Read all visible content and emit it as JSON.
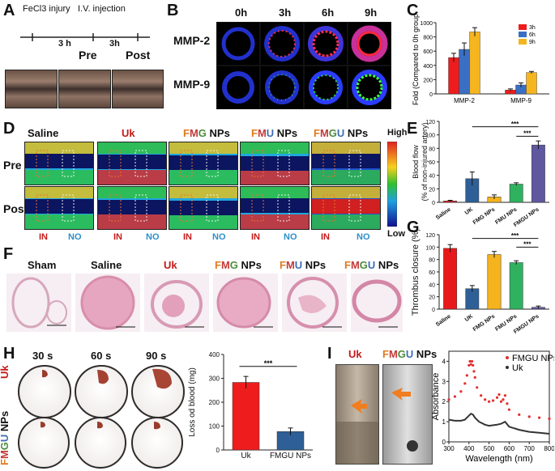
{
  "panels": {
    "A": {
      "label": "A",
      "events": [
        "FeCl3 injury",
        "I.V. injection"
      ],
      "interval1": "3 h",
      "interval2": "3h",
      "pre": "Pre",
      "post": "Post"
    },
    "B": {
      "label": "B",
      "times": [
        "0h",
        "3h",
        "6h",
        "9h"
      ],
      "rows": [
        "MMP-2",
        "MMP-9"
      ]
    },
    "D": {
      "label": "D",
      "groups": [
        "Saline",
        "Uk",
        "FMG NPs",
        "FMU NPs",
        "FMGU NPs"
      ],
      "rows": [
        "Pre",
        "Post"
      ],
      "in_label": "IN",
      "no_label": "NO",
      "scale_high": "High",
      "scale_low": "Low"
    },
    "F": {
      "label": "F",
      "groups": [
        "Sham",
        "Saline",
        "Uk",
        "FMG NPs",
        "FMU NPs",
        "FMGU NPs"
      ]
    },
    "H": {
      "label": "H",
      "times": [
        "30 s",
        "60 s",
        "90 s"
      ],
      "rows": [
        "Uk",
        "FMGU NPs"
      ]
    },
    "I": {
      "label": "I",
      "tubes": [
        "Uk",
        "FMGU NPs"
      ]
    },
    "C": {
      "label": "C"
    },
    "E": {
      "label": "E"
    },
    "G": {
      "label": "G"
    }
  },
  "chart_data": [
    {
      "id": "C",
      "type": "bar",
      "categories": [
        "MMP-2",
        "MMP-9"
      ],
      "series": [
        {
          "name": "3h",
          "color": "#ee1c1c",
          "values": [
            510,
            55
          ],
          "errors": [
            60,
            15
          ]
        },
        {
          "name": "6h",
          "color": "#3a6fc4",
          "values": [
            625,
            125
          ],
          "errors": [
            90,
            30
          ]
        },
        {
          "name": "9h",
          "color": "#f5b51e",
          "values": [
            870,
            300
          ],
          "errors": [
            60,
            15
          ]
        }
      ],
      "title": "",
      "ylabel": "Fold (Compared to 0h group)",
      "ylim": [
        0,
        1000
      ],
      "yticks": [
        "0",
        "200",
        "400",
        "600",
        "800",
        "1000"
      ],
      "legend": "top-right"
    },
    {
      "id": "E",
      "type": "bar",
      "categories": [
        "Saline",
        "UK",
        "FMG NPs",
        "FMU NPs",
        "FMGU NPs"
      ],
      "values": [
        2,
        35,
        8,
        27,
        85
      ],
      "errors": [
        1,
        10,
        3,
        2,
        6
      ],
      "colors": [
        "#e8191b",
        "#2e5f96",
        "#f5b31d",
        "#2fb160",
        "#5f57a0"
      ],
      "ylabel": "Blood flow (% of non-injured artery)",
      "ylim": [
        0,
        120
      ],
      "yticks": [
        "0",
        "20",
        "40",
        "60",
        "80",
        "100",
        "120"
      ],
      "annotations": [
        "***",
        "***"
      ]
    },
    {
      "id": "G",
      "type": "bar",
      "categories": [
        "Saline",
        "UK",
        "FMG NPs",
        "FMU NPs",
        "FMGU NPs"
      ],
      "values": [
        98,
        33,
        88,
        75,
        3
      ],
      "errors": [
        6,
        5,
        5,
        3,
        2
      ],
      "colors": [
        "#e8191b",
        "#2e5f96",
        "#f5b31d",
        "#2fb160",
        "#5f57a0"
      ],
      "ylabel": "Thrombus closure (%)",
      "ylim": [
        0,
        120
      ],
      "yticks": [
        "0",
        "20",
        "40",
        "60",
        "80",
        "100",
        "120"
      ],
      "annotations": [
        "***",
        "***"
      ]
    },
    {
      "id": "H",
      "type": "bar",
      "categories": [
        "Uk",
        "FMGU NPs"
      ],
      "values": [
        283,
        77
      ],
      "errors": [
        25,
        15
      ],
      "colors": [
        "#ee1c1c",
        "#2e5f96"
      ],
      "ylabel": "Loss od blood (mg)",
      "ylim": [
        0,
        400
      ],
      "yticks": [
        "0",
        "100",
        "200",
        "300",
        "400"
      ],
      "annotations": [
        "***"
      ]
    },
    {
      "id": "I",
      "type": "line",
      "series": [
        {
          "name": "FMGU NPs",
          "color": "#e03030",
          "x": [
            300,
            330,
            360,
            380,
            390,
            400,
            405,
            410,
            415,
            420,
            425,
            430,
            440,
            460,
            480,
            500,
            520,
            540,
            550,
            560,
            570,
            580,
            590,
            600,
            650,
            700,
            750,
            800
          ],
          "y": [
            2.1,
            2.25,
            2.5,
            2.9,
            3.3,
            3.8,
            4.0,
            3.85,
            4.0,
            3.8,
            3.5,
            3.2,
            2.7,
            2.3,
            2.1,
            2.0,
            2.05,
            2.2,
            2.35,
            2.0,
            2.1,
            2.3,
            1.9,
            1.6,
            1.35,
            1.25,
            1.2,
            1.15
          ]
        },
        {
          "name": "Uk",
          "color": "#333333",
          "x": [
            300,
            330,
            360,
            380,
            400,
            410,
            420,
            430,
            450,
            480,
            500,
            540,
            560,
            580,
            600,
            650,
            700,
            750,
            800
          ],
          "y": [
            1.1,
            1.05,
            1.05,
            1.1,
            1.3,
            1.4,
            1.35,
            1.2,
            1.0,
            0.85,
            0.8,
            0.85,
            0.9,
            1.0,
            0.75,
            0.6,
            0.5,
            0.45,
            0.4
          ]
        }
      ],
      "xlabel": "Wavelength (nm)",
      "ylabel": "Absorbance",
      "xlim": [
        300,
        800
      ],
      "ylim": [
        0,
        4.5
      ],
      "xticks": [
        "300",
        "400",
        "500",
        "600",
        "700",
        "800"
      ],
      "yticks": [
        "0",
        "1",
        "2",
        "3",
        "4"
      ],
      "legend": "top-right"
    }
  ]
}
